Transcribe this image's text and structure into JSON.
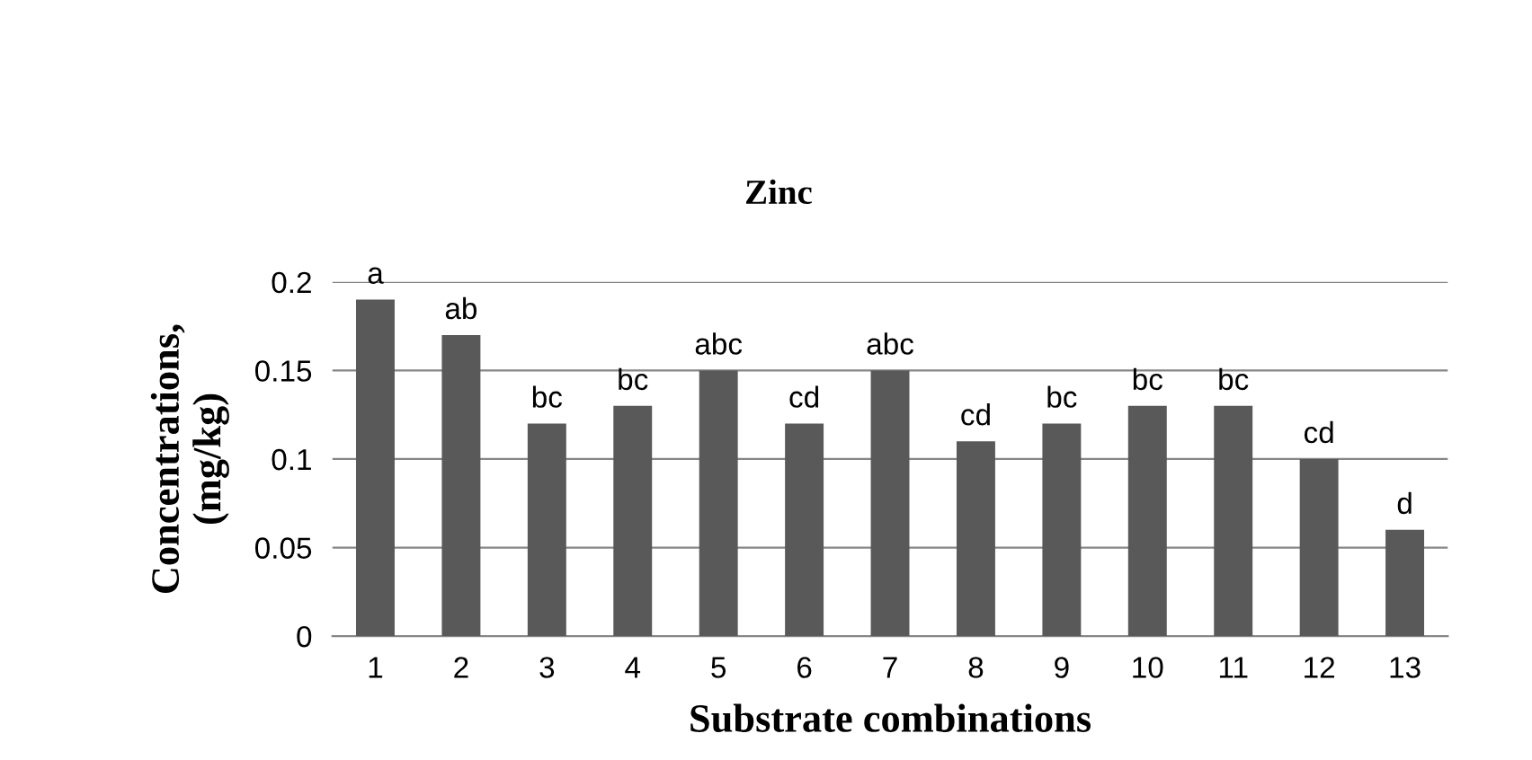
{
  "chart_data": {
    "type": "bar",
    "title": "Zinc",
    "xlabel": "Substrate combinations",
    "ylabel": "Concentrations,\n(mg/kg)",
    "categories": [
      "1",
      "2",
      "3",
      "4",
      "5",
      "6",
      "7",
      "8",
      "9",
      "10",
      "11",
      "12",
      "13"
    ],
    "values": [
      0.19,
      0.17,
      0.12,
      0.13,
      0.15,
      0.12,
      0.15,
      0.11,
      0.12,
      0.13,
      0.13,
      0.1,
      0.06
    ],
    "color": "#595959",
    "ylim": [
      0,
      0.2
    ],
    "yticks": [
      0,
      0.05,
      0.1,
      0.15,
      0.2
    ],
    "grid": "y",
    "annotations": [
      {
        "text": "a",
        "x": "1",
        "y": 0.19
      },
      {
        "text": "ab",
        "x": "2",
        "y": 0.17
      },
      {
        "text": "bc",
        "x": "3",
        "y": 0.12
      },
      {
        "text": "bc",
        "x": "4",
        "y": 0.13
      },
      {
        "text": "abc",
        "x": "5",
        "y": 0.15
      },
      {
        "text": "cd",
        "x": "6",
        "y": 0.12
      },
      {
        "text": "abc",
        "x": "7",
        "y": 0.15
      },
      {
        "text": "cd",
        "x": "8",
        "y": 0.11
      },
      {
        "text": "bc",
        "x": "9",
        "y": 0.12
      },
      {
        "text": "bc",
        "x": "10",
        "y": 0.13
      },
      {
        "text": "bc",
        "x": "11",
        "y": 0.13
      },
      {
        "text": "cd",
        "x": "12",
        "y": 0.1
      },
      {
        "text": "d",
        "x": "13",
        "y": 0.06
      }
    ]
  }
}
